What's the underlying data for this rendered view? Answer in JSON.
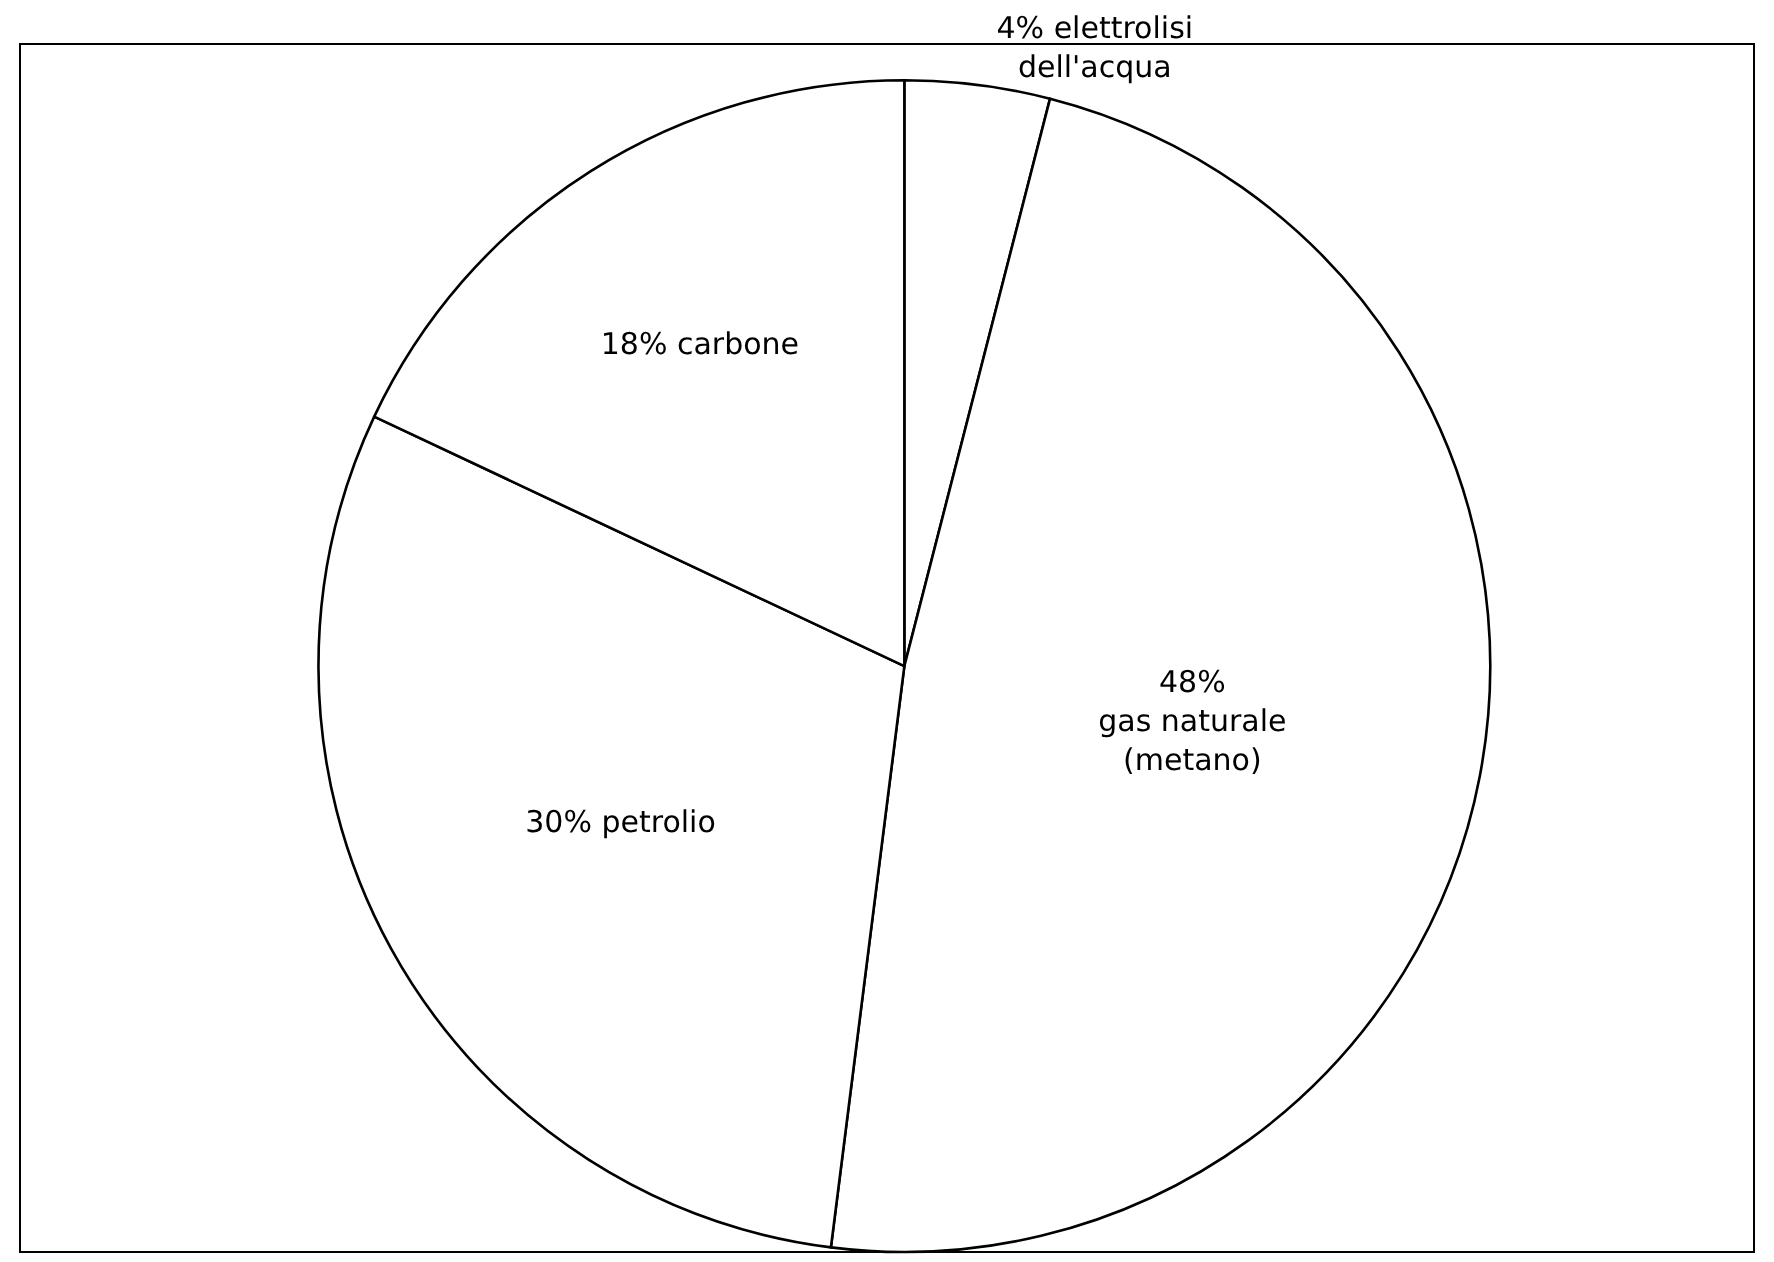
{
  "chart_data": {
    "type": "pie",
    "categories": [
      "4% elettrolisi\ndell'acqua",
      "48%\ngas naturale\n(metano)",
      "30% petrolio",
      "18% carbone"
    ],
    "values": [
      4,
      48,
      30,
      18
    ],
    "colors": [
      "#ffffff",
      "#ffffff",
      "#ffffff",
      "#ffffff"
    ],
    "legend": false
  }
}
